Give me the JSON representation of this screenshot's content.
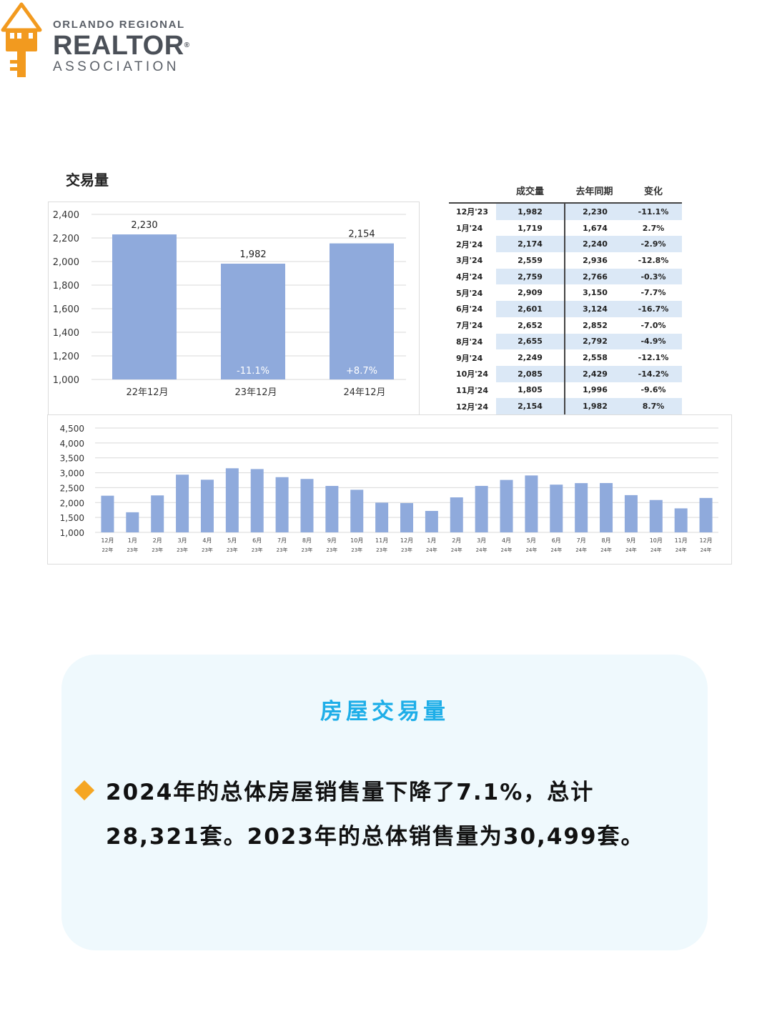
{
  "logo": {
    "line1": "ORLANDO REGIONAL",
    "line2": "REALTOR",
    "reg": "®",
    "line3": "ASSOCIATION",
    "colors": {
      "key": "#f29a1f",
      "text": "#4b5058"
    }
  },
  "section_title": "交易量",
  "table": {
    "headers": [
      "成交量",
      "去年同期",
      "变化"
    ],
    "rows": [
      {
        "month": "12月'23",
        "volume": "1,982",
        "prior": "2,230",
        "change": "-11.1%"
      },
      {
        "month": "1月'24",
        "volume": "1,719",
        "prior": "1,674",
        "change": "2.7%"
      },
      {
        "month": "2月'24",
        "volume": "2,174",
        "prior": "2,240",
        "change": "-2.9%"
      },
      {
        "month": "3月'24",
        "volume": "2,559",
        "prior": "2,936",
        "change": "-12.8%"
      },
      {
        "month": "4月'24",
        "volume": "2,759",
        "prior": "2,766",
        "change": "-0.3%"
      },
      {
        "month": "5月'24",
        "volume": "2,909",
        "prior": "3,150",
        "change": "-7.7%"
      },
      {
        "month": "6月'24",
        "volume": "2,601",
        "prior": "3,124",
        "change": "-16.7%"
      },
      {
        "month": "7月'24",
        "volume": "2,652",
        "prior": "2,852",
        "change": "-7.0%"
      },
      {
        "month": "8月'24",
        "volume": "2,655",
        "prior": "2,792",
        "change": "-4.9%"
      },
      {
        "month": "9月'24",
        "volume": "2,249",
        "prior": "2,558",
        "change": "-12.1%"
      },
      {
        "month": "10月'24",
        "volume": "2,085",
        "prior": "2,429",
        "change": "-14.2%"
      },
      {
        "month": "11月'24",
        "volume": "1,805",
        "prior": "1,996",
        "change": "-9.6%"
      },
      {
        "month": "12月'24",
        "volume": "2,154",
        "prior": "1,982",
        "change": "8.7%"
      }
    ]
  },
  "chart_data": [
    {
      "type": "bar",
      "categories": [
        "22年12月",
        "23年12月",
        "24年12月"
      ],
      "values": [
        2230,
        1982,
        2154
      ],
      "data_labels": [
        "2,230",
        "1,982",
        "2,154"
      ],
      "change_labels": [
        "",
        "-11.1%",
        "+8.7%"
      ],
      "ylim": [
        1000,
        2400
      ],
      "yticks": [
        1000,
        1200,
        1400,
        1600,
        1800,
        2000,
        2200,
        2400
      ],
      "ytick_labels": [
        "1,000",
        "1,200",
        "1,400",
        "1,600",
        "1,800",
        "2,000",
        "2,200",
        "2,400"
      ],
      "grid": true,
      "color": "#8faadc"
    },
    {
      "type": "bar",
      "categories": [
        {
          "m": "12月",
          "y": "22年"
        },
        {
          "m": "1月",
          "y": "23年"
        },
        {
          "m": "2月",
          "y": "23年"
        },
        {
          "m": "3月",
          "y": "23年"
        },
        {
          "m": "4月",
          "y": "23年"
        },
        {
          "m": "5月",
          "y": "23年"
        },
        {
          "m": "6月",
          "y": "23年"
        },
        {
          "m": "7月",
          "y": "23年"
        },
        {
          "m": "8月",
          "y": "23年"
        },
        {
          "m": "9月",
          "y": "23年"
        },
        {
          "m": "10月",
          "y": "23年"
        },
        {
          "m": "11月",
          "y": "23年"
        },
        {
          "m": "12月",
          "y": "23年"
        },
        {
          "m": "1月",
          "y": "24年"
        },
        {
          "m": "2月",
          "y": "24年"
        },
        {
          "m": "3月",
          "y": "24年"
        },
        {
          "m": "4月",
          "y": "24年"
        },
        {
          "m": "5月",
          "y": "24年"
        },
        {
          "m": "6月",
          "y": "24年"
        },
        {
          "m": "7月",
          "y": "24年"
        },
        {
          "m": "8月",
          "y": "24年"
        },
        {
          "m": "9月",
          "y": "24年"
        },
        {
          "m": "10月",
          "y": "24年"
        },
        {
          "m": "11月",
          "y": "24年"
        },
        {
          "m": "12月",
          "y": "24年"
        }
      ],
      "values": [
        2230,
        1674,
        2240,
        2936,
        2766,
        3150,
        3124,
        2852,
        2792,
        2558,
        2429,
        1996,
        1982,
        1719,
        2174,
        2559,
        2759,
        2909,
        2601,
        2652,
        2655,
        2249,
        2085,
        1805,
        2154
      ],
      "ylim": [
        1000,
        4500
      ],
      "yticks": [
        1000,
        1500,
        2000,
        2500,
        3000,
        3500,
        4000,
        4500
      ],
      "ytick_labels": [
        "1,000",
        "1,500",
        "2,000",
        "2,500",
        "3,000",
        "3,500",
        "4,000",
        "4,500"
      ],
      "grid": true,
      "color": "#8faadc"
    }
  ],
  "summary": {
    "title": "房屋交易量",
    "text": "2024年的总体房屋销售量下降了7.1%，总计28,321套。2023年的总体销售量为30,499套。",
    "colors": {
      "title": "#1eaee8",
      "bullet": "#f5a623",
      "card": "#eff9fd"
    }
  }
}
